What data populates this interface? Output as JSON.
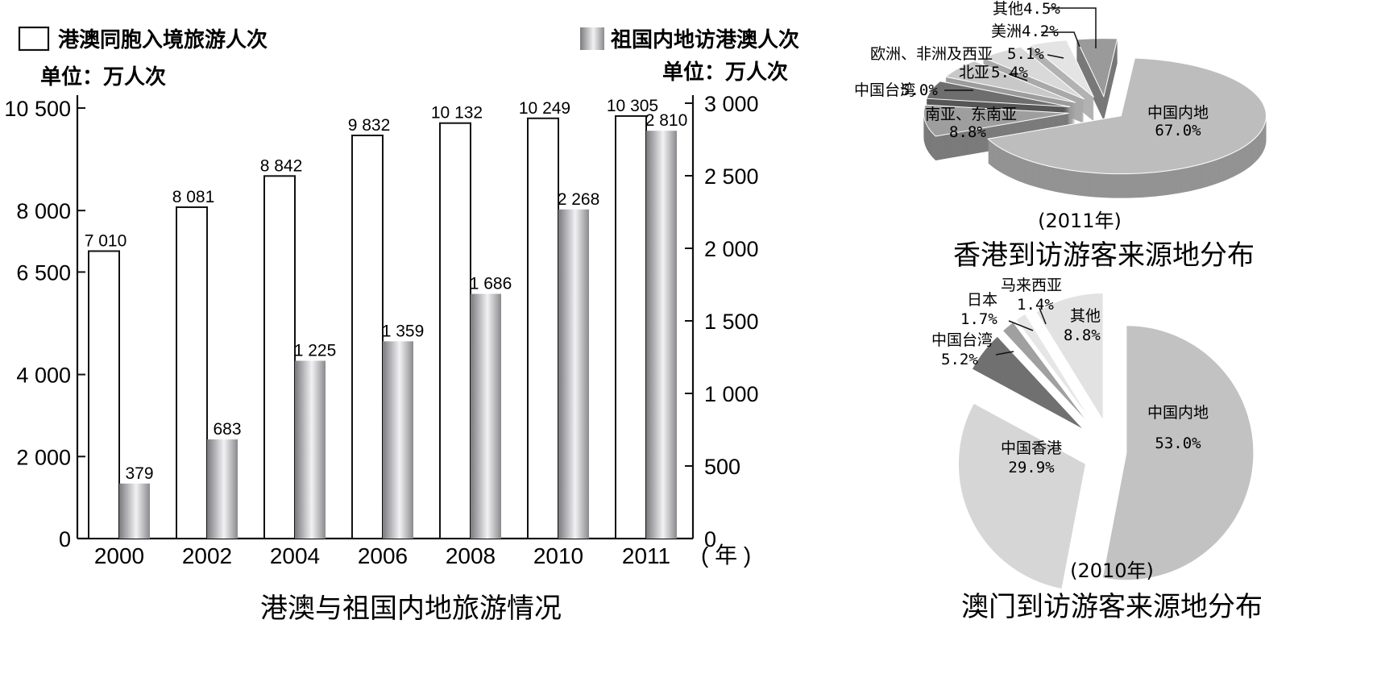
{
  "chart_data": [
    {
      "type": "bar",
      "title": "港澳与祖国内地旅游情况",
      "categories": [
        "2000",
        "2002",
        "2004",
        "2006",
        "2008",
        "2010",
        "2011"
      ],
      "x_unit": "( 年 )",
      "series": [
        {
          "name": "港澳同胞入境旅游人次",
          "unit": "单位：万人次",
          "axis": "left",
          "values": [
            7010,
            8081,
            8842,
            9832,
            10132,
            10249,
            10305
          ],
          "labels": [
            "7 010",
            "8 081",
            "8 842",
            "9 832",
            "10 132",
            "10 249",
            "10 305"
          ]
        },
        {
          "name": "祖国内地访港澳人次",
          "unit": "单位：万人次",
          "axis": "right",
          "values": [
            379,
            683,
            1225,
            1359,
            1686,
            2268,
            2810
          ],
          "labels": [
            "379",
            "683",
            "1 225",
            "1 359",
            "1 686",
            "2 268",
            "2 810"
          ]
        }
      ],
      "left_axis": {
        "ticks": [
          0,
          2000,
          4000,
          6500,
          8000,
          10500
        ],
        "tick_labels": [
          "0",
          "2 000",
          "4 000",
          "6 500",
          "8 000",
          "10 500"
        ]
      },
      "right_axis": {
        "ticks": [
          0,
          500,
          1000,
          1500,
          2000,
          2500,
          3000
        ],
        "tick_labels": [
          "0",
          "500",
          "1 000",
          "1 500",
          "2 000",
          "2 500",
          "3 000"
        ]
      },
      "colors": {
        "series1_fill": "#ffffff",
        "series2_fill": "#a8a8ac",
        "axis": "#111111"
      }
    },
    {
      "type": "pie",
      "title": "香港到访游客来源地分布",
      "subtitle": "(2011年)",
      "slices": [
        {
          "label": "中国内地",
          "pct": "67.0%",
          "value": 67.0,
          "color": "#bdbdbd"
        },
        {
          "label": "南亚、东南亚",
          "pct": "8.8%",
          "value": 8.8,
          "color": "#9e9e9e"
        },
        {
          "label": "中国台湾",
          "pct": "5.0%",
          "value": 5.0,
          "color": "#6e6e6e"
        },
        {
          "label": "北亚",
          "pct": "5.4%",
          "value": 5.4,
          "color": "#c8c8c8"
        },
        {
          "label": "欧洲、非洲及西亚",
          "pct": "5.1%",
          "value": 5.1,
          "color": "#d9d9d9"
        },
        {
          "label": "美洲",
          "pct": "4.2%",
          "value": 4.2,
          "color": "#e4e4e4"
        },
        {
          "label": "其他",
          "pct": "4.5%",
          "value": 4.5,
          "color": "#9a9a9a"
        }
      ]
    },
    {
      "type": "pie",
      "title": "澳门到访游客来源地分布",
      "subtitle": "(2010年)",
      "slices": [
        {
          "label": "中国内地",
          "pct": "53.0%",
          "value": 53.0,
          "color": "#c2c2c2"
        },
        {
          "label": "中国香港",
          "pct": "29.9%",
          "value": 29.9,
          "color": "#d6d6d6"
        },
        {
          "label": "中国台湾",
          "pct": "5.2%",
          "value": 5.2,
          "color": "#707070"
        },
        {
          "label": "日本",
          "pct": "1.7%",
          "value": 1.7,
          "color": "#a0a0a0"
        },
        {
          "label": "马来西亚",
          "pct": "1.4%",
          "value": 1.4,
          "color": "#e6e6e6"
        },
        {
          "label": "其他",
          "pct": "8.8%",
          "value": 8.8,
          "color": "#e2e2e2"
        }
      ]
    }
  ]
}
